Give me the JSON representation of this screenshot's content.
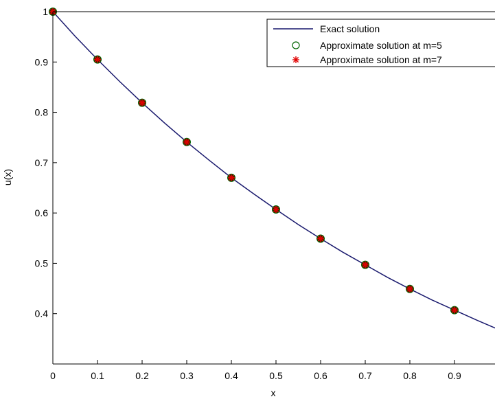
{
  "chart_data": {
    "type": "line",
    "title": "",
    "xlabel": "x",
    "ylabel": "u(x)",
    "xlim": [
      0,
      1
    ],
    "ylim": [
      0.3,
      1
    ],
    "xticks": [
      0,
      0.1,
      0.2,
      0.3,
      0.4,
      0.5,
      0.6,
      0.7,
      0.8,
      0.9
    ],
    "xtick_labels": [
      "0",
      "0.1",
      "0.2",
      "0.3",
      "0.4",
      "0.5",
      "0.6",
      "0.7",
      "0.8",
      "0.9"
    ],
    "yticks": [
      0.4,
      0.5,
      0.6,
      0.7,
      0.8,
      0.9,
      1
    ],
    "ytick_labels": [
      "0.4",
      "0.5",
      "0.6",
      "0.7",
      "0.8",
      "0.9",
      "1"
    ],
    "grid": false,
    "legend_position": "top-right",
    "series": [
      {
        "name": "Exact solution",
        "style": "line",
        "color": "#1a1a6e",
        "x": [
          0,
          0.05,
          0.1,
          0.15,
          0.2,
          0.25,
          0.3,
          0.35,
          0.4,
          0.45,
          0.5,
          0.55,
          0.6,
          0.65,
          0.7,
          0.75,
          0.8,
          0.85,
          0.9,
          0.95,
          1
        ],
        "y": [
          1,
          0.951,
          0.905,
          0.861,
          0.819,
          0.779,
          0.741,
          0.705,
          0.67,
          0.638,
          0.607,
          0.577,
          0.549,
          0.522,
          0.497,
          0.472,
          0.449,
          0.427,
          0.407,
          0.387,
          0.368
        ]
      },
      {
        "name": "Approximate solution at m=5",
        "style": "circle",
        "color": "#006400",
        "x": [
          0,
          0.1,
          0.2,
          0.3,
          0.4,
          0.5,
          0.6,
          0.7,
          0.8,
          0.9
        ],
        "y": [
          1,
          0.905,
          0.819,
          0.741,
          0.67,
          0.607,
          0.549,
          0.497,
          0.449,
          0.407
        ]
      },
      {
        "name": "Approximate solution at m=7",
        "style": "asterisk",
        "color": "#e00000",
        "x": [
          0,
          0.1,
          0.2,
          0.3,
          0.4,
          0.5,
          0.6,
          0.7,
          0.8,
          0.9
        ],
        "y": [
          1,
          0.905,
          0.819,
          0.741,
          0.67,
          0.607,
          0.549,
          0.497,
          0.449,
          0.407
        ]
      }
    ]
  }
}
